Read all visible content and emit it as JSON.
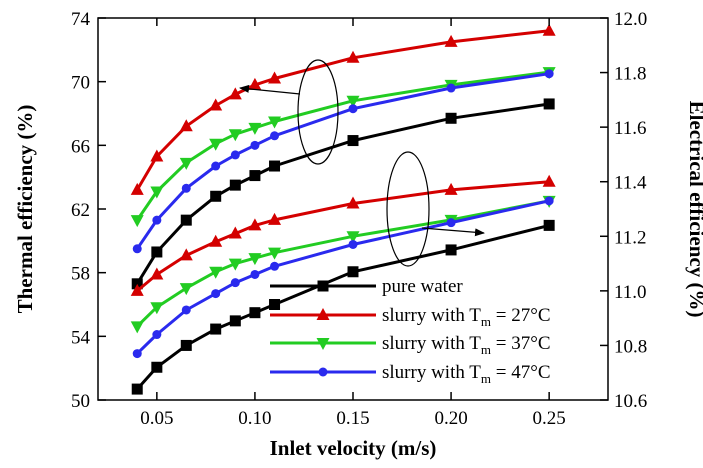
{
  "chart_data": {
    "type": "line",
    "xlabel": "Inlet velocity (m/s)",
    "ylabel_left": "Thermal efficiency (%)",
    "ylabel_right": "Electrical efficiency (%)",
    "xlim": [
      0.02,
      0.28
    ],
    "ylim_left": [
      50,
      74
    ],
    "ylim_right": [
      10.6,
      12.0
    ],
    "x_ticks": [
      0.05,
      0.1,
      0.15,
      0.2,
      0.25
    ],
    "x_tick_labels": [
      "0.05",
      "0.10",
      "0.15",
      "0.20",
      "0.25"
    ],
    "y_left_ticks": [
      50,
      54,
      58,
      62,
      66,
      70,
      74
    ],
    "y_left_tick_labels": [
      "50",
      "54",
      "58",
      "62",
      "66",
      "70",
      "74"
    ],
    "y_right_ticks": [
      10.6,
      10.8,
      11.0,
      11.2,
      11.4,
      11.6,
      11.8,
      12.0
    ],
    "y_right_tick_labels": [
      "10.6",
      "10.8",
      "11.0",
      "11.2",
      "11.4",
      "11.6",
      "11.8",
      "12.0"
    ],
    "x": [
      0.04,
      0.05,
      0.065,
      0.08,
      0.09,
      0.1,
      0.11,
      0.15,
      0.2,
      0.25
    ],
    "series": [
      {
        "name": "pure water",
        "legend_main": "pure water",
        "legend_sub": "",
        "legend_tail": "",
        "color": "#000000",
        "marker": "square",
        "thermal": [
          57.3,
          59.3,
          61.3,
          62.8,
          63.5,
          64.1,
          64.7,
          66.3,
          67.7,
          68.6
        ],
        "electrical": [
          10.64,
          10.72,
          10.8,
          10.86,
          10.89,
          10.92,
          10.95,
          11.07,
          11.15,
          11.24
        ]
      },
      {
        "name": "slurry with Tm = 27°C",
        "legend_main": "slurry with T",
        "legend_sub": "m",
        "legend_tail": " = 27°C",
        "color": "#d40000",
        "marker": "triangle-up",
        "thermal": [
          63.2,
          65.3,
          67.2,
          68.5,
          69.2,
          69.8,
          70.2,
          71.5,
          72.5,
          73.2
        ],
        "electrical": [
          11.0,
          11.06,
          11.13,
          11.18,
          11.21,
          11.24,
          11.26,
          11.32,
          11.37,
          11.4
        ]
      },
      {
        "name": "slurry with Tm = 37°C",
        "legend_main": "slurry with T",
        "legend_sub": "m",
        "legend_tail": " = 37°C",
        "color": "#22cc22",
        "marker": "triangle-down",
        "thermal": [
          61.3,
          63.1,
          64.9,
          66.1,
          66.7,
          67.1,
          67.5,
          68.8,
          69.8,
          70.6
        ],
        "electrical": [
          10.87,
          10.94,
          11.01,
          11.07,
          11.1,
          11.12,
          11.14,
          11.2,
          11.26,
          11.33
        ]
      },
      {
        "name": "slurry with Tm = 47°C",
        "legend_main": "slurry with T",
        "legend_sub": "m",
        "legend_tail": " = 47°C",
        "color": "#2a2aee",
        "marker": "circle",
        "thermal": [
          59.5,
          61.3,
          63.3,
          64.7,
          65.4,
          66.0,
          66.6,
          68.3,
          69.6,
          70.5
        ],
        "electrical": [
          10.77,
          10.84,
          10.93,
          10.99,
          11.03,
          11.06,
          11.09,
          11.17,
          11.25,
          11.33
        ]
      }
    ],
    "grid": false,
    "legend_position": "bottom-right"
  }
}
